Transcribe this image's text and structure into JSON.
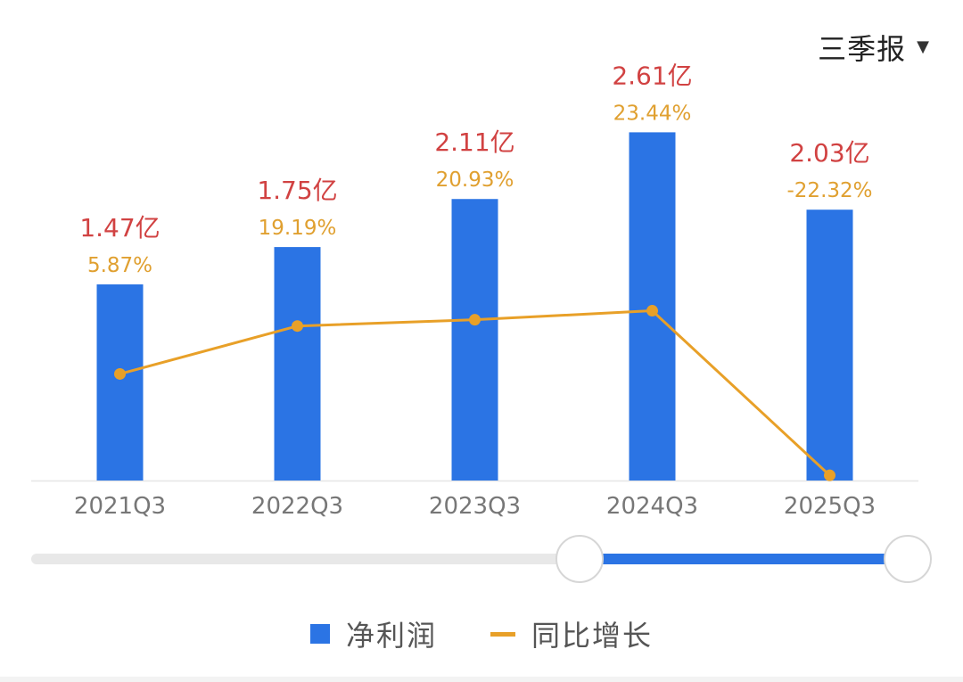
{
  "controls": {
    "period_label": "三季报"
  },
  "legend": {
    "bar_label": "净利润",
    "line_label": "同比增长"
  },
  "colors": {
    "bar": "#2b74e4",
    "line": "#e8a028",
    "value_label": "#d14242",
    "growth_label": "#e0a030",
    "axis_text": "#777777"
  },
  "chart_data": {
    "type": "bar",
    "categories": [
      "2021Q3",
      "2022Q3",
      "2023Q3",
      "2024Q3",
      "2025Q3"
    ],
    "series": [
      {
        "name": "净利润",
        "type": "bar",
        "values": [
          1.47,
          1.75,
          2.11,
          2.61,
          2.03
        ],
        "labels": [
          "1.47亿",
          "1.75亿",
          "2.11亿",
          "2.61亿",
          "2.03亿"
        ]
      },
      {
        "name": "同比增长",
        "type": "line",
        "values": [
          5.87,
          19.19,
          20.93,
          23.44,
          -22.32
        ],
        "labels": [
          "5.87%",
          "19.19%",
          "20.93%",
          "23.44%",
          "-22.32%"
        ]
      }
    ],
    "ylim_bar": [
      0,
      2.9
    ],
    "ylim_line": [
      -25,
      90
    ],
    "grid": false,
    "legend_position": "bottom-center"
  }
}
